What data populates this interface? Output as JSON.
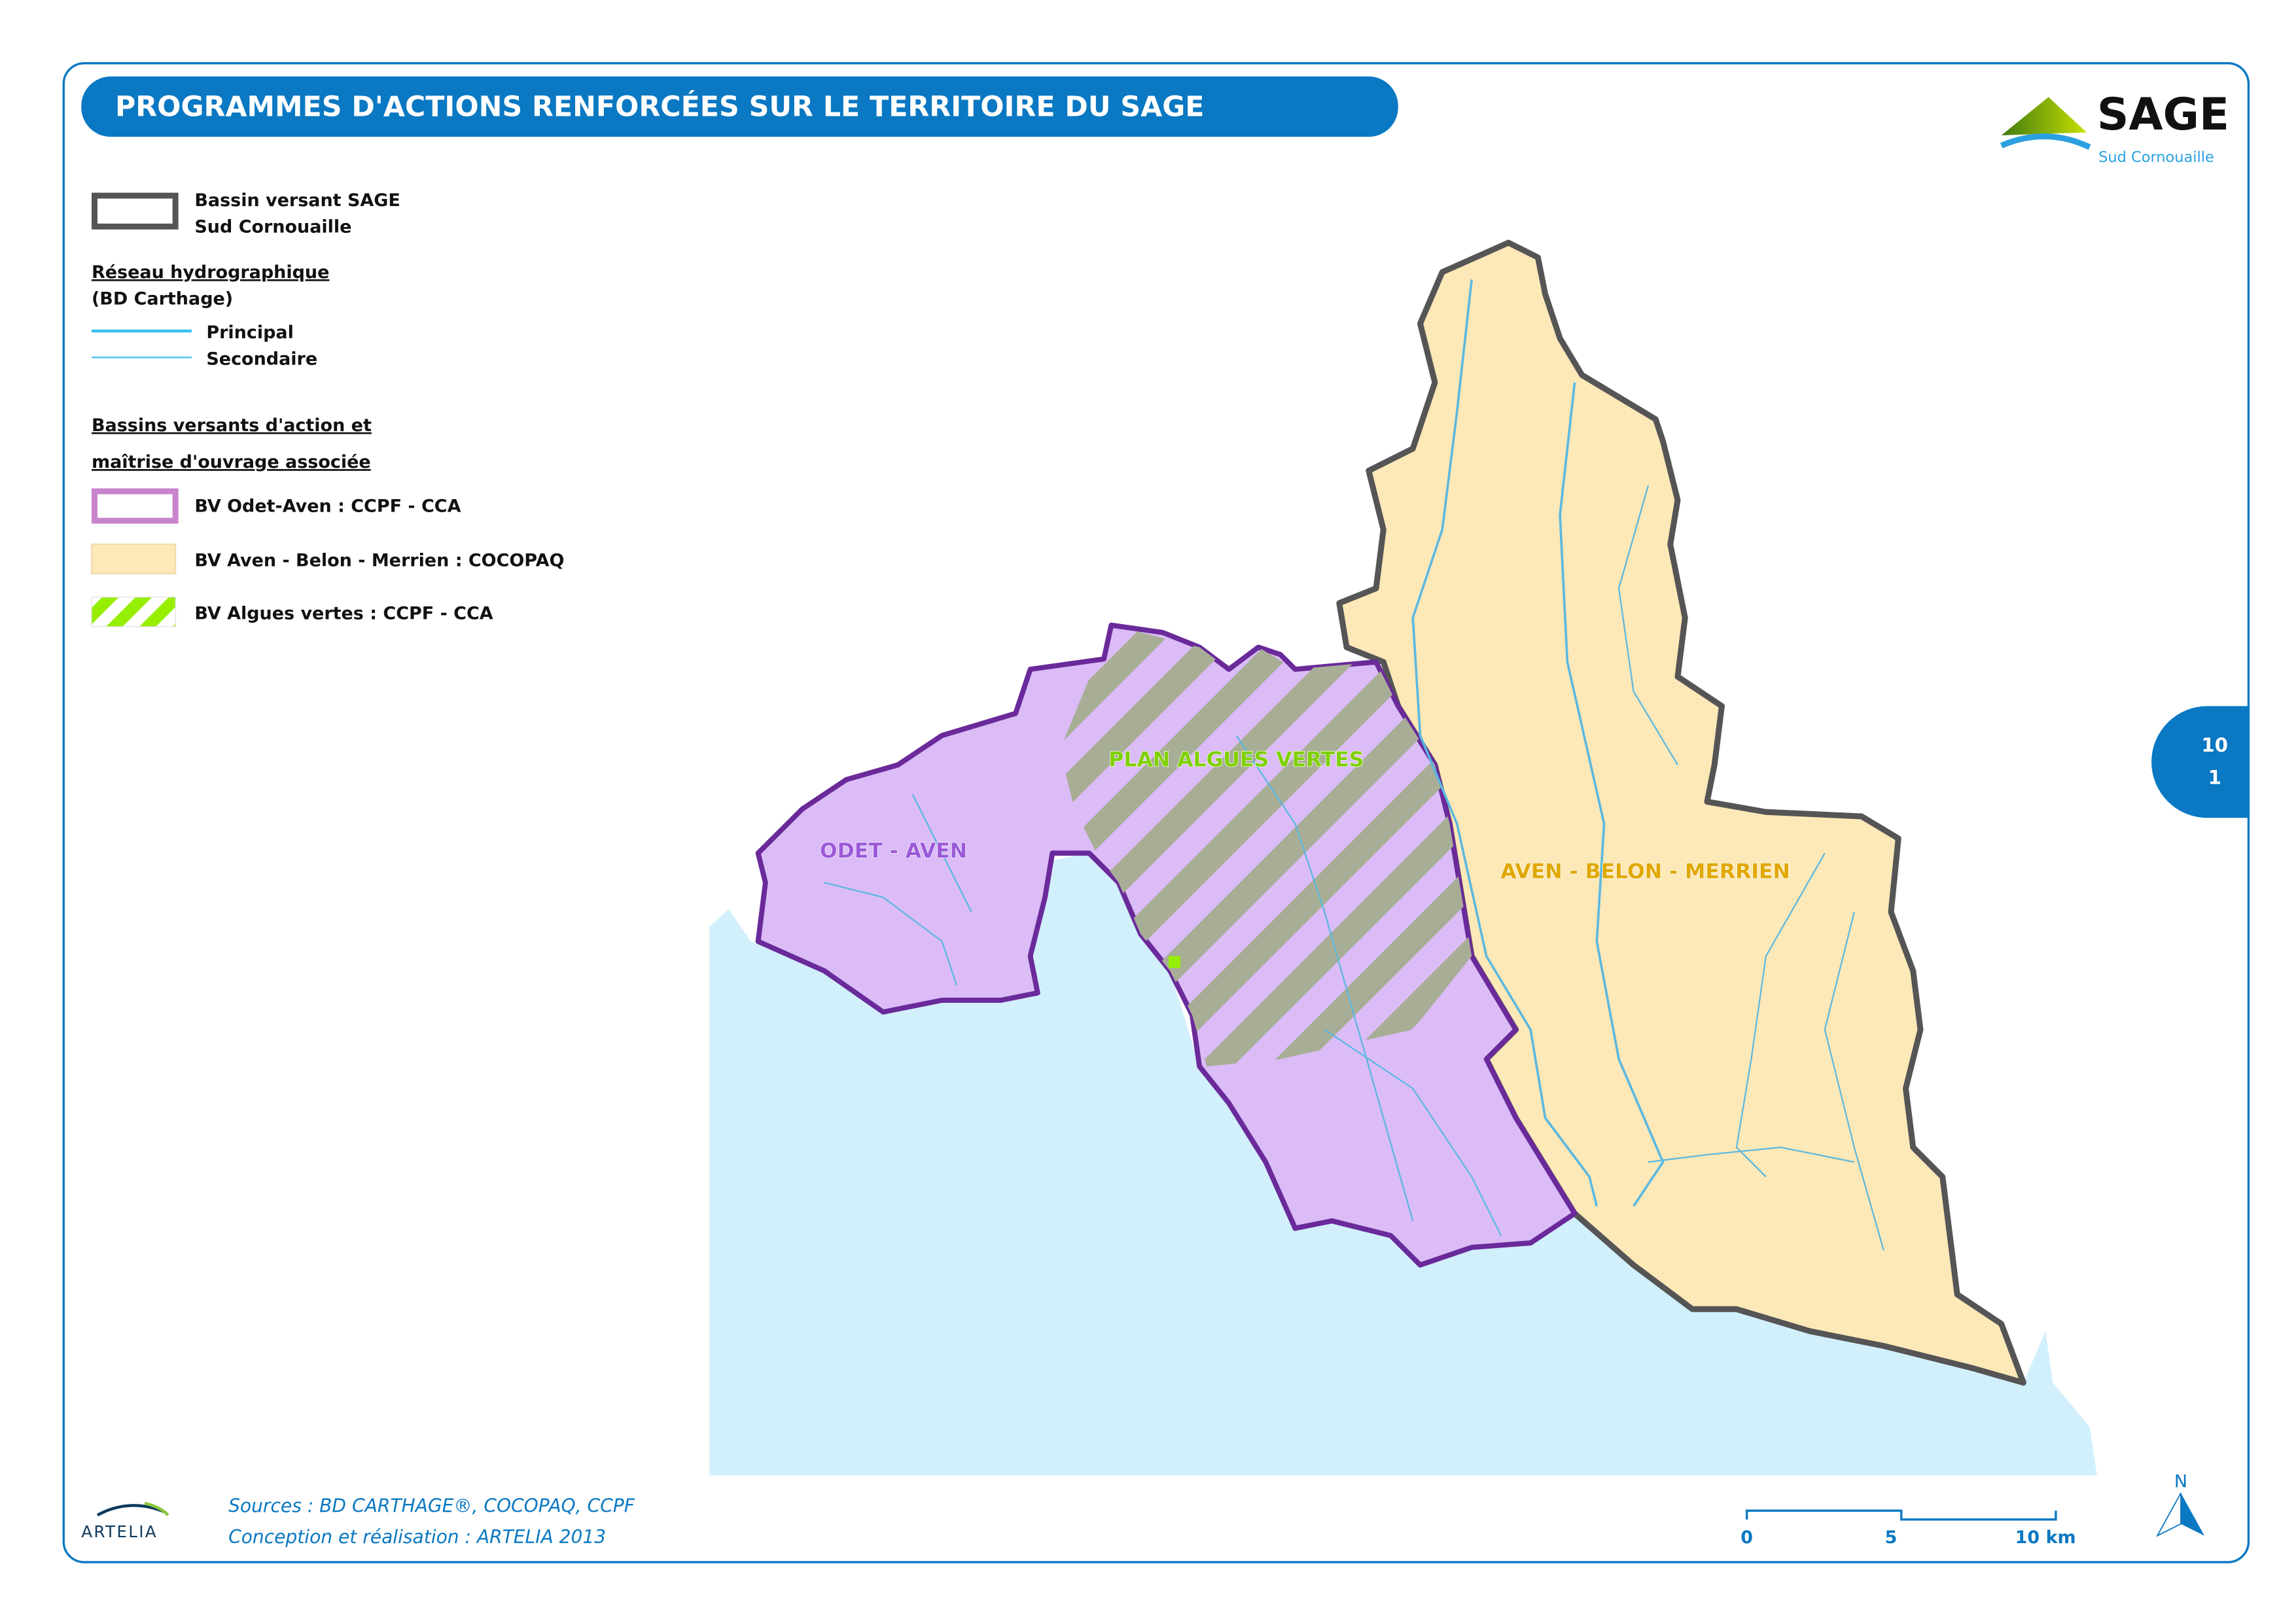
{
  "header": {
    "title": "PROGRAMMES D'ACTIONS RENFORCÉES SUR LE TERRITOIRE DU SAGE"
  },
  "logo_sage": {
    "name": "SAGE",
    "subtitle": "Sud Cornouaille"
  },
  "legend": {
    "boundary": {
      "line1": "Bassin versant SAGE",
      "line2": "Sud Cornouaille"
    },
    "hydro": {
      "title": "Réseau hydrographique",
      "subtitle": "(BD Carthage)",
      "items": [
        {
          "label": "Principal"
        },
        {
          "label": "Secondaire"
        }
      ]
    },
    "basins": {
      "title_line1": "Bassins versants d'action et",
      "title_line2": "maîtrise d'ouvrage associée",
      "items": [
        {
          "label": "BV Odet-Aven : CCPF - CCA",
          "color": "#c884cc"
        },
        {
          "label": "BV Aven - Belon - Merrien : COCOPAQ",
          "color": "#fde8b8"
        },
        {
          "label": "BV Algues vertes : CCPF - CCA",
          "color": "#96ef00"
        }
      ]
    }
  },
  "map": {
    "labels": {
      "odet_aven": "ODET - AVEN",
      "algues_vertes": "PLAN ALGUES VERTES",
      "aven_belon_merrien": "AVEN - BELON - MERRIEN"
    },
    "colors": {
      "sea": "#d2effc",
      "odet_aven": "#dbbcf7",
      "aven_belon": "#fde8b8",
      "hatch": "#a8ae96",
      "boundary_purple": "#6a2a9a",
      "boundary_gray": "#555555",
      "river": "#5ab8e0"
    }
  },
  "page_badge": {
    "line1": "10",
    "line2": "1"
  },
  "footer": {
    "artelia": "ARTELIA",
    "sources": "Sources : BD CARTHAGE®, COCOPAQ, CCPF",
    "credits": "Conception et réalisation : ARTELIA 2013",
    "scale": {
      "ticks": [
        "0",
        "5",
        "10 km"
      ]
    },
    "north": "N"
  },
  "accent": "#0a78c2"
}
